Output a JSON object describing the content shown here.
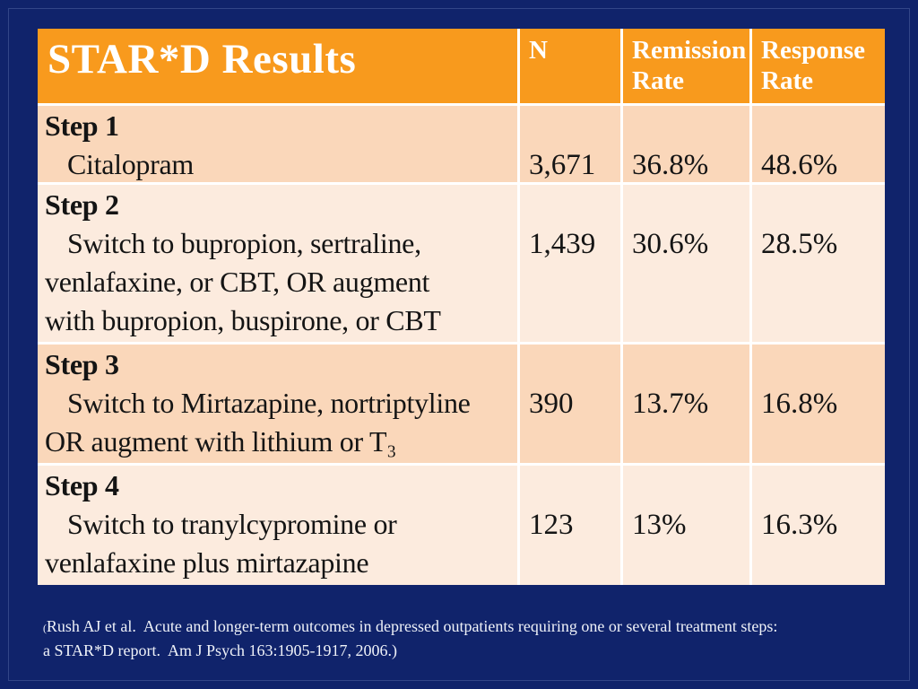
{
  "colors": {
    "slide_bg": "#10236B",
    "header_bg": "#F89A1D",
    "row_odd_bg": "#FAD7BA",
    "row_even_bg": "#FCEBDE",
    "grid_line": "#FFFFFF",
    "text_dark": "#141414",
    "text_light": "#FFFFFF"
  },
  "table": {
    "title": "STAR*D Results",
    "columns": [
      "N",
      "Remission Rate",
      "Response Rate"
    ],
    "rows": [
      {
        "step": "Step 1",
        "detail": [
          "Citalopram"
        ],
        "n": "3,671",
        "remission": "36.8%",
        "response": "48.6%"
      },
      {
        "step": "Step 2",
        "detail": [
          "Switch to bupropion, sertraline,",
          "venlafaxine, or CBT, OR augment",
          "with bupropion, buspirone, or CBT"
        ],
        "n": "1,439",
        "remission": "30.6%",
        "response": "28.5%"
      },
      {
        "step": "Step 3",
        "detail": [
          "Switch to Mirtazapine, nortriptyline",
          "OR augment with lithium or T₃"
        ],
        "n": "390",
        "remission": "13.7%",
        "response": "16.8%"
      },
      {
        "step": "Step 4",
        "detail": [
          "Switch to tranylcypromine or",
          "venlafaxine plus mirtazapine"
        ],
        "n": "123",
        "remission": "13%",
        "response": "16.3%"
      }
    ]
  },
  "footer": {
    "paren": "(",
    "line1": "Rush AJ et al.  Acute and longer-term outcomes in depressed outpatients requiring one or several treatment steps:",
    "line2": "a STAR*D report.  Am J Psych 163:1905-1917, 2006.)"
  }
}
